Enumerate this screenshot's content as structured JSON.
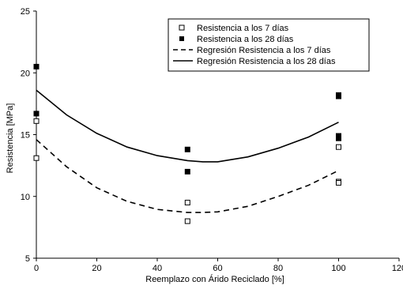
{
  "chart_data": {
    "type": "scatter",
    "xlabel": "Reemplazo con Árido Reciclado [%]",
    "ylabel": "Resistencia [MPa]",
    "xlim": [
      0,
      120
    ],
    "ylim": [
      5,
      25
    ],
    "xticks": [
      0,
      20,
      40,
      60,
      80,
      100,
      120
    ],
    "yticks": [
      5,
      10,
      15,
      20,
      25
    ],
    "grid": false,
    "legend_position": "top-right",
    "series": [
      {
        "name": "Resistencia a los 7 días",
        "kind": "points",
        "marker": "open-square",
        "x": [
          0,
          0,
          50,
          50,
          100,
          100,
          100
        ],
        "y": [
          16.1,
          13.1,
          9.5,
          8.0,
          14.0,
          11.2,
          11.1
        ]
      },
      {
        "name": "Resistencia a los 28 días",
        "kind": "points",
        "marker": "filled-square",
        "x": [
          0,
          0,
          50,
          50,
          100,
          100,
          100,
          100
        ],
        "y": [
          20.5,
          16.7,
          13.8,
          12.0,
          18.1,
          18.2,
          14.9,
          14.7
        ]
      },
      {
        "name": "Regresión Resistencia a los 7 días",
        "kind": "curve",
        "style": "dashed",
        "x": [
          0,
          10,
          20,
          30,
          40,
          50,
          55,
          60,
          70,
          80,
          90,
          100
        ],
        "y": [
          14.6,
          12.4,
          10.7,
          9.6,
          8.95,
          8.7,
          8.7,
          8.75,
          9.2,
          10.0,
          10.9,
          12.1
        ]
      },
      {
        "name": "Regresión Resistencia a los 28 días",
        "kind": "curve",
        "style": "solid",
        "x": [
          0,
          10,
          20,
          30,
          40,
          50,
          55,
          60,
          70,
          80,
          90,
          100
        ],
        "y": [
          18.6,
          16.6,
          15.1,
          14.0,
          13.3,
          12.9,
          12.8,
          12.8,
          13.2,
          13.9,
          14.8,
          16.0
        ]
      }
    ]
  }
}
